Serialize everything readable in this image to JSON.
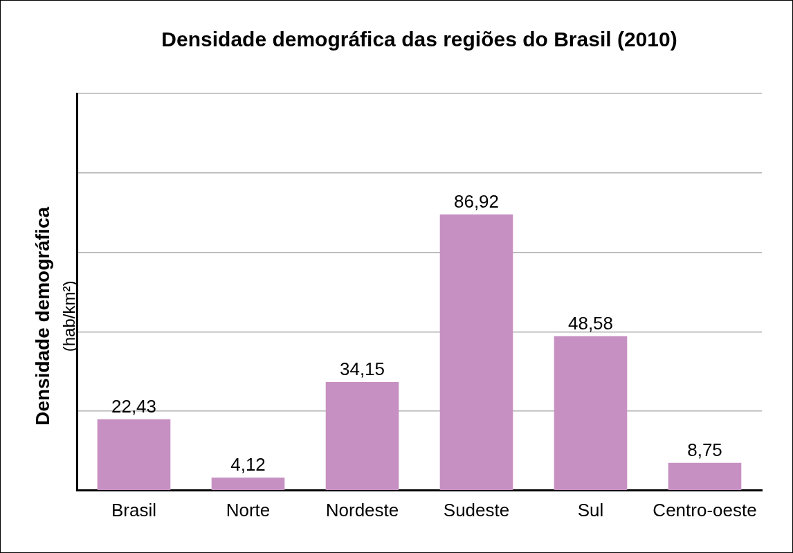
{
  "chart_data": {
    "type": "bar",
    "title": "Densidade demográfica das regiões do Brasil (2010)",
    "ylabel": [
      "Densidade demográfica",
      "(hab/km²)"
    ],
    "categories": [
      "Brasil",
      "Norte",
      "Nordeste",
      "Sudeste",
      "Sul",
      "Centro-oeste"
    ],
    "values": [
      22.43,
      4.12,
      34.15,
      86.92,
      48.58,
      8.75
    ],
    "value_labels": [
      "22,43",
      "4,12",
      "34,15",
      "86,92",
      "48,58",
      "8,75"
    ],
    "color": "#c790c3",
    "ylim": [
      0,
      125
    ],
    "yticks": [
      0,
      25,
      50,
      75,
      100,
      125
    ],
    "grid": true,
    "data_labels": true,
    "tick_labels": "x"
  }
}
